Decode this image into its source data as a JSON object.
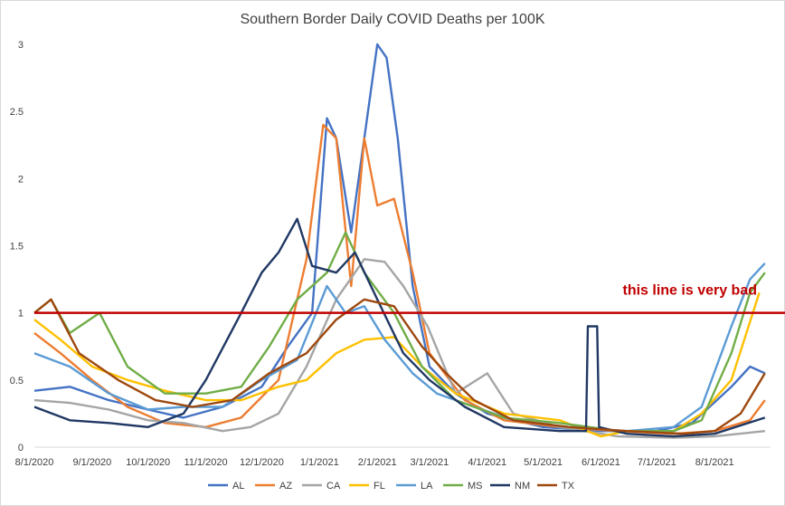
{
  "chart_data": {
    "type": "line",
    "title": "Southern Border Daily COVID Deaths per 100K",
    "xlabel": "",
    "ylabel": "",
    "xlim": [
      "2020-08-01",
      "2021-08-31"
    ],
    "ylim": [
      0,
      3
    ],
    "x_ticks": [
      "8/1/2020",
      "9/1/2020",
      "10/1/2020",
      "11/1/2020",
      "12/1/2020",
      "1/1/2021",
      "2/1/2021",
      "3/1/2021",
      "4/1/2021",
      "5/1/2021",
      "6/1/2021",
      "7/1/2021",
      "8/1/2021"
    ],
    "y_ticks": [
      "0",
      "0.5",
      "1",
      "1.5",
      "2",
      "2.5",
      "3"
    ],
    "grid": false,
    "legend_position": "bottom",
    "reference_line": {
      "y": 1,
      "color": "#c00000",
      "label": "this line is very bad"
    },
    "series": [
      {
        "name": "AL",
        "color": "#4472c4",
        "points": [
          [
            "2020-08-01",
            0.42
          ],
          [
            "2020-08-20",
            0.45
          ],
          [
            "2020-09-10",
            0.35
          ],
          [
            "2020-10-01",
            0.28
          ],
          [
            "2020-10-20",
            0.22
          ],
          [
            "2020-11-10",
            0.3
          ],
          [
            "2020-12-01",
            0.45
          ],
          [
            "2020-12-15",
            0.75
          ],
          [
            "2020-12-28",
            1.0
          ],
          [
            "2021-01-05",
            2.45
          ],
          [
            "2021-01-10",
            2.3
          ],
          [
            "2021-01-18",
            1.6
          ],
          [
            "2021-01-25",
            2.3
          ],
          [
            "2021-02-01",
            3.0
          ],
          [
            "2021-02-06",
            2.9
          ],
          [
            "2021-02-12",
            2.3
          ],
          [
            "2021-02-20",
            1.2
          ],
          [
            "2021-03-01",
            0.6
          ],
          [
            "2021-03-15",
            0.4
          ],
          [
            "2021-04-01",
            0.25
          ],
          [
            "2021-05-01",
            0.15
          ],
          [
            "2021-06-01",
            0.12
          ],
          [
            "2021-07-01",
            0.12
          ],
          [
            "2021-07-20",
            0.18
          ],
          [
            "2021-08-10",
            0.45
          ],
          [
            "2021-08-20",
            0.6
          ],
          [
            "2021-08-28",
            0.55
          ]
        ]
      },
      {
        "name": "AZ",
        "color": "#ed7d31",
        "points": [
          [
            "2020-08-01",
            0.85
          ],
          [
            "2020-08-15",
            0.7
          ],
          [
            "2020-09-01",
            0.5
          ],
          [
            "2020-09-20",
            0.3
          ],
          [
            "2020-10-10",
            0.18
          ],
          [
            "2020-11-01",
            0.15
          ],
          [
            "2020-11-20",
            0.22
          ],
          [
            "2020-12-10",
            0.5
          ],
          [
            "2020-12-25",
            1.4
          ],
          [
            "2021-01-03",
            2.4
          ],
          [
            "2021-01-10",
            2.3
          ],
          [
            "2021-01-18",
            1.2
          ],
          [
            "2021-01-25",
            2.3
          ],
          [
            "2021-02-01",
            1.8
          ],
          [
            "2021-02-10",
            1.85
          ],
          [
            "2021-02-20",
            1.3
          ],
          [
            "2021-03-01",
            0.7
          ],
          [
            "2021-03-20",
            0.35
          ],
          [
            "2021-04-10",
            0.2
          ],
          [
            "2021-05-10",
            0.15
          ],
          [
            "2021-06-10",
            0.12
          ],
          [
            "2021-07-10",
            0.1
          ],
          [
            "2021-08-01",
            0.12
          ],
          [
            "2021-08-20",
            0.2
          ],
          [
            "2021-08-28",
            0.35
          ]
        ]
      },
      {
        "name": "CA",
        "color": "#a5a5a5",
        "points": [
          [
            "2020-08-01",
            0.35
          ],
          [
            "2020-08-20",
            0.33
          ],
          [
            "2020-09-10",
            0.28
          ],
          [
            "2020-10-01",
            0.2
          ],
          [
            "2020-10-20",
            0.18
          ],
          [
            "2020-11-10",
            0.12
          ],
          [
            "2020-11-25",
            0.15
          ],
          [
            "2020-12-10",
            0.25
          ],
          [
            "2020-12-25",
            0.6
          ],
          [
            "2021-01-10",
            1.1
          ],
          [
            "2021-01-25",
            1.4
          ],
          [
            "2021-02-05",
            1.38
          ],
          [
            "2021-02-15",
            1.2
          ],
          [
            "2021-02-28",
            0.9
          ],
          [
            "2021-03-15",
            0.4
          ],
          [
            "2021-04-01",
            0.55
          ],
          [
            "2021-04-15",
            0.25
          ],
          [
            "2021-05-10",
            0.15
          ],
          [
            "2021-06-10",
            0.08
          ],
          [
            "2021-07-10",
            0.07
          ],
          [
            "2021-08-01",
            0.08
          ],
          [
            "2021-08-28",
            0.12
          ]
        ]
      },
      {
        "name": "FL",
        "color": "#ffc000",
        "points": [
          [
            "2020-08-01",
            0.95
          ],
          [
            "2020-08-15",
            0.8
          ],
          [
            "2020-09-01",
            0.6
          ],
          [
            "2020-09-20",
            0.5
          ],
          [
            "2020-10-10",
            0.42
          ],
          [
            "2020-11-01",
            0.35
          ],
          [
            "2020-11-20",
            0.35
          ],
          [
            "2020-12-10",
            0.45
          ],
          [
            "2020-12-25",
            0.5
          ],
          [
            "2021-01-10",
            0.7
          ],
          [
            "2021-01-25",
            0.8
          ],
          [
            "2021-02-10",
            0.82
          ],
          [
            "2021-02-25",
            0.6
          ],
          [
            "2021-03-15",
            0.4
          ],
          [
            "2021-04-10",
            0.25
          ],
          [
            "2021-05-10",
            0.2
          ],
          [
            "2021-06-01",
            0.08
          ],
          [
            "2021-06-15",
            0.12
          ],
          [
            "2021-07-10",
            0.12
          ],
          [
            "2021-07-25",
            0.25
          ],
          [
            "2021-08-10",
            0.5
          ],
          [
            "2021-08-25",
            1.15
          ]
        ]
      },
      {
        "name": "LA",
        "color": "#5b9bd5",
        "points": [
          [
            "2020-08-01",
            0.7
          ],
          [
            "2020-08-20",
            0.6
          ],
          [
            "2020-09-10",
            0.4
          ],
          [
            "2020-10-01",
            0.28
          ],
          [
            "2020-10-20",
            0.3
          ],
          [
            "2020-11-10",
            0.3
          ],
          [
            "2020-12-01",
            0.5
          ],
          [
            "2020-12-20",
            0.65
          ],
          [
            "2021-01-05",
            1.2
          ],
          [
            "2021-01-15",
            1.0
          ],
          [
            "2021-01-25",
            1.05
          ],
          [
            "2021-02-05",
            0.8
          ],
          [
            "2021-02-20",
            0.55
          ],
          [
            "2021-03-05",
            0.4
          ],
          [
            "2021-03-25",
            0.3
          ],
          [
            "2021-04-15",
            0.2
          ],
          [
            "2021-05-15",
            0.15
          ],
          [
            "2021-06-15",
            0.12
          ],
          [
            "2021-07-10",
            0.15
          ],
          [
            "2021-07-25",
            0.3
          ],
          [
            "2021-08-10",
            0.9
          ],
          [
            "2021-08-20",
            1.25
          ],
          [
            "2021-08-28",
            1.37
          ]
        ]
      },
      {
        "name": "MS",
        "color": "#70ad47",
        "points": [
          [
            "2020-08-01",
            1.0
          ],
          [
            "2020-08-10",
            1.1
          ],
          [
            "2020-08-20",
            0.85
          ],
          [
            "2020-09-05",
            1.0
          ],
          [
            "2020-09-20",
            0.6
          ],
          [
            "2020-10-10",
            0.4
          ],
          [
            "2020-11-01",
            0.4
          ],
          [
            "2020-11-20",
            0.45
          ],
          [
            "2020-12-05",
            0.75
          ],
          [
            "2020-12-20",
            1.1
          ],
          [
            "2021-01-05",
            1.3
          ],
          [
            "2021-01-15",
            1.6
          ],
          [
            "2021-01-25",
            1.3
          ],
          [
            "2021-02-10",
            1.0
          ],
          [
            "2021-02-25",
            0.6
          ],
          [
            "2021-03-15",
            0.35
          ],
          [
            "2021-04-10",
            0.22
          ],
          [
            "2021-05-10",
            0.18
          ],
          [
            "2021-06-10",
            0.12
          ],
          [
            "2021-07-10",
            0.12
          ],
          [
            "2021-07-25",
            0.2
          ],
          [
            "2021-08-10",
            0.7
          ],
          [
            "2021-08-20",
            1.15
          ],
          [
            "2021-08-28",
            1.3
          ]
        ]
      },
      {
        "name": "NM",
        "color": "#203864",
        "points": [
          [
            "2020-08-01",
            0.3
          ],
          [
            "2020-08-20",
            0.2
          ],
          [
            "2020-09-10",
            0.18
          ],
          [
            "2020-10-01",
            0.15
          ],
          [
            "2020-10-20",
            0.25
          ],
          [
            "2020-11-01",
            0.5
          ],
          [
            "2020-11-20",
            1.0
          ],
          [
            "2020-12-01",
            1.3
          ],
          [
            "2020-12-10",
            1.45
          ],
          [
            "2020-12-20",
            1.7
          ],
          [
            "2020-12-28",
            1.35
          ],
          [
            "2021-01-10",
            1.3
          ],
          [
            "2021-01-20",
            1.45
          ],
          [
            "2021-02-01",
            1.1
          ],
          [
            "2021-02-15",
            0.7
          ],
          [
            "2021-03-01",
            0.5
          ],
          [
            "2021-03-20",
            0.3
          ],
          [
            "2021-04-10",
            0.15
          ],
          [
            "2021-05-10",
            0.12
          ],
          [
            "2021-05-24",
            0.12
          ],
          [
            "2021-05-25",
            0.9
          ],
          [
            "2021-05-30",
            0.9
          ],
          [
            "2021-05-31",
            0.15
          ],
          [
            "2021-06-15",
            0.1
          ],
          [
            "2021-07-10",
            0.08
          ],
          [
            "2021-08-01",
            0.1
          ],
          [
            "2021-08-28",
            0.22
          ]
        ]
      },
      {
        "name": "TX",
        "color": "#9e480e",
        "points": [
          [
            "2020-08-01",
            1.0
          ],
          [
            "2020-08-10",
            1.1
          ],
          [
            "2020-08-25",
            0.7
          ],
          [
            "2020-09-15",
            0.5
          ],
          [
            "2020-10-05",
            0.35
          ],
          [
            "2020-10-25",
            0.3
          ],
          [
            "2020-11-15",
            0.35
          ],
          [
            "2020-12-05",
            0.55
          ],
          [
            "2020-12-25",
            0.7
          ],
          [
            "2021-01-10",
            0.95
          ],
          [
            "2021-01-25",
            1.1
          ],
          [
            "2021-02-10",
            1.05
          ],
          [
            "2021-02-25",
            0.75
          ],
          [
            "2021-03-10",
            0.55
          ],
          [
            "2021-03-25",
            0.35
          ],
          [
            "2021-04-15",
            0.2
          ],
          [
            "2021-05-15",
            0.15
          ],
          [
            "2021-06-15",
            0.12
          ],
          [
            "2021-07-15",
            0.1
          ],
          [
            "2021-08-01",
            0.12
          ],
          [
            "2021-08-15",
            0.25
          ],
          [
            "2021-08-28",
            0.55
          ]
        ]
      }
    ]
  }
}
